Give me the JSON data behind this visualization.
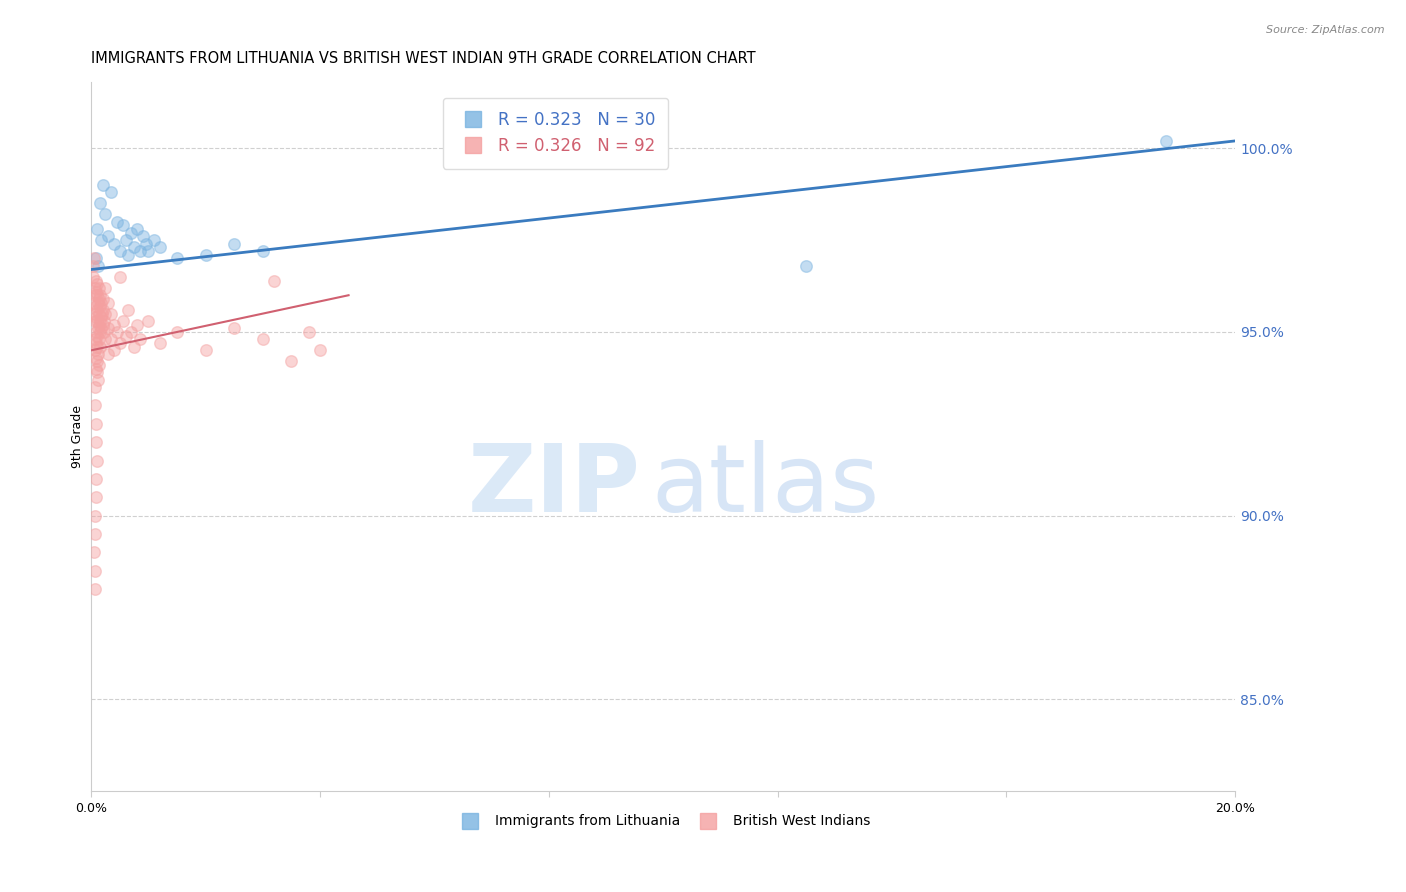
{
  "title": "IMMIGRANTS FROM LITHUANIA VS BRITISH WEST INDIAN 9TH GRADE CORRELATION CHART",
  "source": "Source: ZipAtlas.com",
  "ylabel": "9th Grade",
  "right_yticks": [
    85.0,
    90.0,
    95.0,
    100.0
  ],
  "xmin": 0.0,
  "xmax": 20.0,
  "ymin": 82.5,
  "ymax": 101.8,
  "lithuania_scatter": [
    [
      0.1,
      97.8
    ],
    [
      0.15,
      98.5
    ],
    [
      0.2,
      99.0
    ],
    [
      0.25,
      98.2
    ],
    [
      0.3,
      97.6
    ],
    [
      0.35,
      98.8
    ],
    [
      0.4,
      97.4
    ],
    [
      0.45,
      98.0
    ],
    [
      0.5,
      97.2
    ],
    [
      0.55,
      97.9
    ],
    [
      0.6,
      97.5
    ],
    [
      0.65,
      97.1
    ],
    [
      0.7,
      97.7
    ],
    [
      0.75,
      97.3
    ],
    [
      0.8,
      97.8
    ],
    [
      0.85,
      97.2
    ],
    [
      0.9,
      97.6
    ],
    [
      0.95,
      97.4
    ],
    [
      1.0,
      97.2
    ],
    [
      1.1,
      97.5
    ],
    [
      1.2,
      97.3
    ],
    [
      1.5,
      97.0
    ],
    [
      2.0,
      97.1
    ],
    [
      2.5,
      97.4
    ],
    [
      3.0,
      97.2
    ],
    [
      0.08,
      97.0
    ],
    [
      0.12,
      96.8
    ],
    [
      0.18,
      97.5
    ],
    [
      12.5,
      96.8
    ],
    [
      18.8,
      100.2
    ]
  ],
  "bwi_scatter": [
    [
      0.03,
      96.5
    ],
    [
      0.04,
      96.8
    ],
    [
      0.05,
      97.0
    ],
    [
      0.05,
      95.8
    ],
    [
      0.06,
      96.2
    ],
    [
      0.06,
      95.5
    ],
    [
      0.06,
      94.8
    ],
    [
      0.07,
      96.0
    ],
    [
      0.07,
      95.3
    ],
    [
      0.07,
      94.5
    ],
    [
      0.08,
      96.4
    ],
    [
      0.08,
      95.7
    ],
    [
      0.08,
      95.0
    ],
    [
      0.08,
      94.3
    ],
    [
      0.09,
      96.1
    ],
    [
      0.09,
      95.4
    ],
    [
      0.09,
      94.7
    ],
    [
      0.09,
      94.0
    ],
    [
      0.1,
      96.3
    ],
    [
      0.1,
      95.6
    ],
    [
      0.1,
      94.9
    ],
    [
      0.1,
      94.2
    ],
    [
      0.11,
      96.0
    ],
    [
      0.11,
      95.3
    ],
    [
      0.11,
      94.6
    ],
    [
      0.11,
      93.9
    ],
    [
      0.12,
      95.8
    ],
    [
      0.12,
      95.1
    ],
    [
      0.12,
      94.4
    ],
    [
      0.12,
      93.7
    ],
    [
      0.13,
      96.2
    ],
    [
      0.13,
      95.5
    ],
    [
      0.13,
      94.8
    ],
    [
      0.13,
      94.1
    ],
    [
      0.14,
      95.9
    ],
    [
      0.14,
      95.2
    ],
    [
      0.15,
      96.0
    ],
    [
      0.15,
      95.3
    ],
    [
      0.15,
      94.6
    ],
    [
      0.16,
      95.7
    ],
    [
      0.16,
      95.0
    ],
    [
      0.17,
      95.4
    ],
    [
      0.18,
      95.8
    ],
    [
      0.18,
      95.1
    ],
    [
      0.19,
      95.5
    ],
    [
      0.2,
      95.9
    ],
    [
      0.2,
      95.2
    ],
    [
      0.21,
      95.6
    ],
    [
      0.22,
      95.3
    ],
    [
      0.23,
      95.0
    ],
    [
      0.25,
      96.2
    ],
    [
      0.25,
      95.5
    ],
    [
      0.25,
      94.8
    ],
    [
      0.3,
      95.8
    ],
    [
      0.3,
      95.1
    ],
    [
      0.3,
      94.4
    ],
    [
      0.35,
      95.5
    ],
    [
      0.35,
      94.8
    ],
    [
      0.4,
      95.2
    ],
    [
      0.4,
      94.5
    ],
    [
      0.45,
      95.0
    ],
    [
      0.5,
      96.5
    ],
    [
      0.5,
      94.7
    ],
    [
      0.55,
      95.3
    ],
    [
      0.6,
      94.9
    ],
    [
      0.65,
      95.6
    ],
    [
      0.7,
      95.0
    ],
    [
      0.75,
      94.6
    ],
    [
      0.8,
      95.2
    ],
    [
      0.85,
      94.8
    ],
    [
      1.0,
      95.3
    ],
    [
      1.2,
      94.7
    ],
    [
      1.5,
      95.0
    ],
    [
      2.0,
      94.5
    ],
    [
      2.5,
      95.1
    ],
    [
      3.0,
      94.8
    ],
    [
      3.2,
      96.4
    ],
    [
      3.5,
      94.2
    ],
    [
      3.8,
      95.0
    ],
    [
      4.0,
      94.5
    ],
    [
      0.07,
      93.0
    ],
    [
      0.08,
      92.5
    ],
    [
      0.09,
      92.0
    ],
    [
      0.1,
      91.5
    ],
    [
      0.06,
      93.5
    ],
    [
      0.08,
      91.0
    ],
    [
      0.09,
      90.5
    ],
    [
      0.07,
      90.0
    ],
    [
      0.06,
      89.5
    ],
    [
      0.05,
      89.0
    ],
    [
      0.06,
      88.5
    ],
    [
      0.07,
      88.0
    ]
  ],
  "blue_line_x": [
    0.0,
    20.0
  ],
  "blue_line_y": [
    96.7,
    100.2
  ],
  "pink_line_x": [
    0.0,
    4.5
  ],
  "pink_line_y": [
    94.5,
    96.0
  ],
  "scatter_size": 70,
  "scatter_alpha": 0.45,
  "blue_color": "#7ab3e0",
  "pink_color": "#f4a0a0",
  "line_blue_color": "#3a7bbf",
  "line_pink_color": "#d06070",
  "grid_color": "#d0d0d0",
  "right_axis_color": "#4472c4",
  "legend_blue_color": "#4472c4",
  "legend_pink_color": "#d06070",
  "title_fontsize": 10.5,
  "axis_label_fontsize": 9,
  "tick_fontsize": 9
}
